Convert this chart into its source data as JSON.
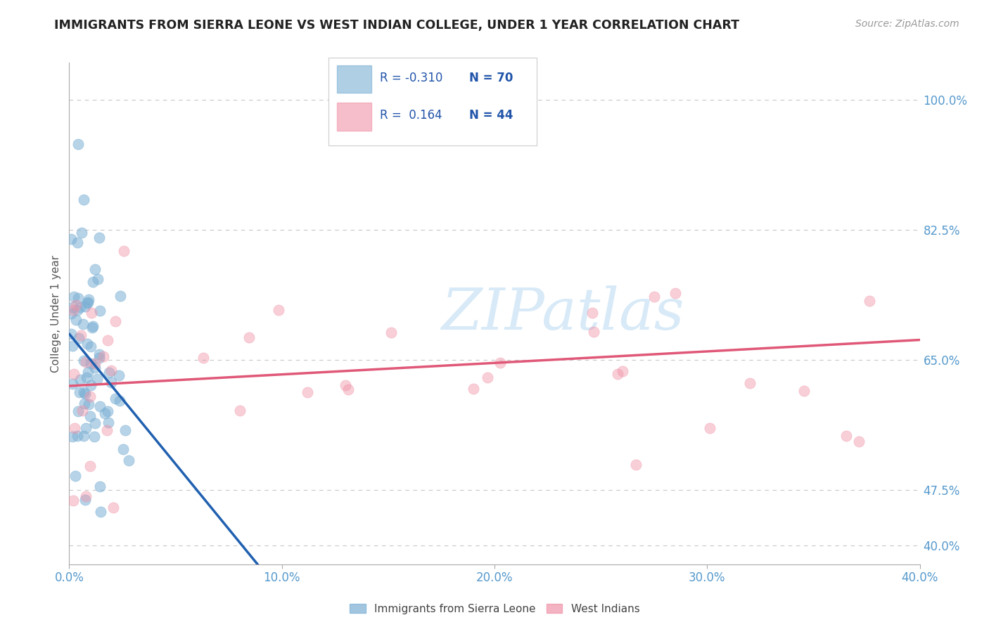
{
  "title": "IMMIGRANTS FROM SIERRA LEONE VS WEST INDIAN COLLEGE, UNDER 1 YEAR CORRELATION CHART",
  "source": "Source: ZipAtlas.com",
  "ylabel": "College, Under 1 year",
  "xlim": [
    0.0,
    0.4
  ],
  "ylim": [
    0.375,
    1.05
  ],
  "right_yticks": [
    0.4,
    0.475,
    0.65,
    0.825,
    1.0
  ],
  "right_yticklabels": [
    "40.0%",
    "47.5%",
    "65.0%",
    "82.5%",
    "100.0%"
  ],
  "xticks": [
    0.0,
    0.1,
    0.2,
    0.3,
    0.4
  ],
  "xticklabels": [
    "0.0%",
    "10.0%",
    "20.0%",
    "30.0%",
    "40.0%"
  ],
  "legend_r1": "R = -0.310",
  "legend_n1": "N = 70",
  "legend_r2": "R =  0.164",
  "legend_n2": "N = 44",
  "watermark": "ZIPatlas",
  "series1_color": "#7bafd4",
  "series2_color": "#f093a8",
  "trendline1_color": "#2060b0",
  "trendline2_color": "#e05878",
  "background_color": "#ffffff",
  "grid_color": "#c8c8c8",
  "axis_label_color": "#5599cc",
  "title_color": "#222222",
  "legend_text_color": "#2255aa",
  "legend_bg": "#ffffff",
  "trendline1_m": -3.5,
  "trendline1_b": 0.685,
  "trendline1_solid_end": 0.09,
  "trendline2_m": 0.155,
  "trendline2_b": 0.615
}
